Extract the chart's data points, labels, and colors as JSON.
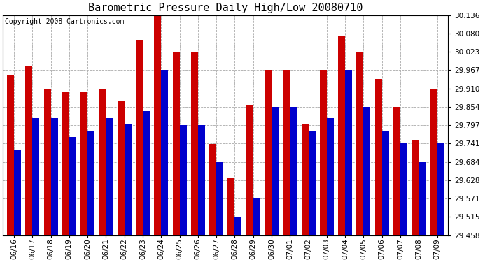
{
  "title": "Barometric Pressure Daily High/Low 20080710",
  "copyright_text": "Copyright 2008 Cartronics.com",
  "dates": [
    "06/16",
    "06/17",
    "06/18",
    "06/19",
    "06/20",
    "06/21",
    "06/22",
    "06/23",
    "06/24",
    "06/25",
    "06/26",
    "06/27",
    "06/28",
    "06/29",
    "06/30",
    "07/01",
    "07/02",
    "07/03",
    "07/04",
    "07/05",
    "07/06",
    "07/07",
    "07/08",
    "07/09"
  ],
  "highs": [
    29.95,
    29.98,
    29.91,
    29.9,
    29.9,
    29.91,
    29.87,
    30.06,
    30.136,
    30.023,
    30.023,
    29.74,
    29.635,
    29.86,
    29.967,
    29.967,
    29.8,
    29.967,
    30.07,
    30.023,
    29.94,
    29.854,
    29.75,
    29.91
  ],
  "lows": [
    29.72,
    29.82,
    29.82,
    29.76,
    29.78,
    29.82,
    29.8,
    29.84,
    29.967,
    29.797,
    29.797,
    29.684,
    29.515,
    29.571,
    29.854,
    29.854,
    29.78,
    29.82,
    29.967,
    29.854,
    29.78,
    29.741,
    29.684,
    29.741
  ],
  "ylim_min": 29.458,
  "ylim_max": 30.136,
  "yticks": [
    29.458,
    29.515,
    29.571,
    29.628,
    29.684,
    29.741,
    29.797,
    29.854,
    29.91,
    29.967,
    30.023,
    30.08,
    30.136
  ],
  "bar_color_high": "#cc0000",
  "bar_color_low": "#0000cc",
  "background_color": "#ffffff",
  "grid_color": "#aaaaaa",
  "title_fontsize": 11,
  "tick_fontsize": 7.5,
  "copyright_fontsize": 7
}
